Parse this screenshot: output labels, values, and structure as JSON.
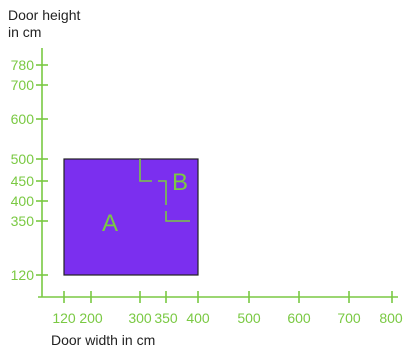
{
  "diagram": {
    "y_axis_title": "Door height\nin cm",
    "x_axis_title": "Door width in cm",
    "x_ticks": [
      "120",
      "200",
      "300",
      "350",
      "400",
      "500",
      "600",
      "700",
      "800"
    ],
    "y_ticks": [
      "120",
      "350",
      "400",
      "450",
      "500",
      "600",
      "700",
      "780"
    ],
    "regions": [
      {
        "name": "A",
        "x_range": [
          120,
          400
        ],
        "y_range": [
          120,
          500
        ],
        "fill": "#7b2fef"
      },
      {
        "name": "B",
        "x_range": [
          300,
          400
        ],
        "y_range": [
          350,
          500
        ]
      }
    ],
    "colors": {
      "axis": "#7ac943",
      "label_text": "#7ac943",
      "region_border": "#222222",
      "region_fill": "#7b2fef"
    }
  }
}
